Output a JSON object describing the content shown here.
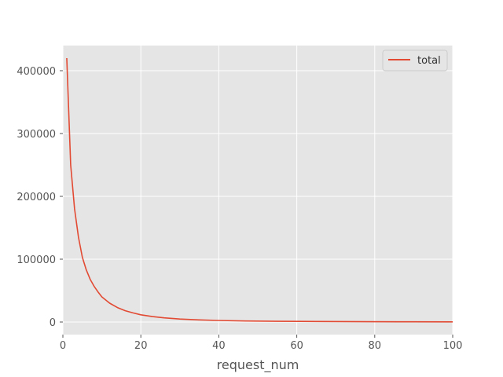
{
  "chart_data": {
    "type": "line",
    "title": "",
    "xlabel": "request_num",
    "ylabel": "",
    "xlim": [
      0,
      100
    ],
    "ylim": [
      -20000,
      440000
    ],
    "x_ticks": [
      0,
      20,
      40,
      60,
      80,
      100
    ],
    "x_tick_labels": [
      "0",
      "20",
      "40",
      "60",
      "80",
      "100"
    ],
    "y_ticks": [
      0,
      100000,
      200000,
      300000,
      400000
    ],
    "y_tick_labels": [
      "0",
      "100000",
      "200000",
      "300000",
      "400000"
    ],
    "grid": true,
    "legend_position": "top-right",
    "background": "#e5e5e5",
    "series": [
      {
        "name": "total",
        "color": "#e24a33",
        "x": [
          1,
          2,
          3,
          4,
          5,
          6,
          7,
          8,
          9,
          10,
          12,
          14,
          16,
          18,
          20,
          23,
          26,
          30,
          35,
          40,
          47,
          55,
          65,
          78,
          90,
          100
        ],
        "y": [
          420000,
          250000,
          180000,
          135000,
          103000,
          83000,
          68000,
          57000,
          48000,
          40000,
          30000,
          23000,
          18000,
          14500,
          11500,
          8700,
          6600,
          4800,
          3400,
          2500,
          1700,
          1200,
          800,
          500,
          350,
          280
        ]
      }
    ]
  }
}
